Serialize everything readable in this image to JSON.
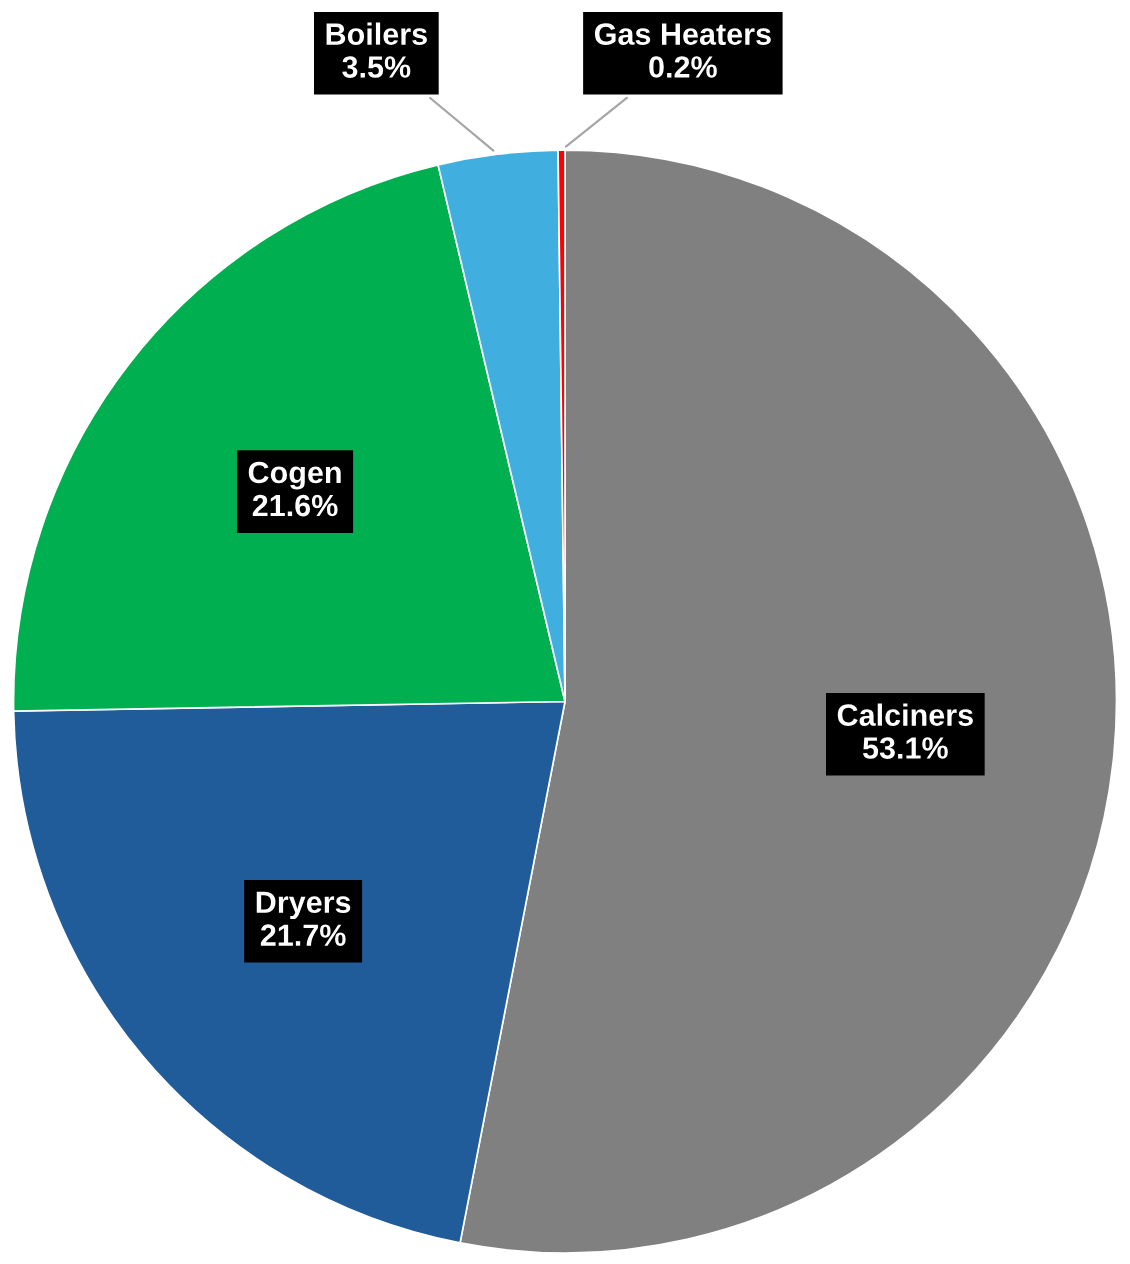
{
  "chart_data": {
    "type": "pie",
    "categories": [
      "Calciners",
      "Dryers",
      "Cogen",
      "Boilers",
      "Gas Heaters"
    ],
    "values": [
      53.1,
      21.7,
      21.6,
      3.5,
      0.2
    ],
    "colors": [
      "#808080",
      "#1f5c99",
      "#00b050",
      "#41aee0",
      "#ff0000"
    ],
    "value_labels": [
      "53.1%",
      "21.7%",
      "21.6%",
      "3.5%",
      "0.2%"
    ]
  }
}
